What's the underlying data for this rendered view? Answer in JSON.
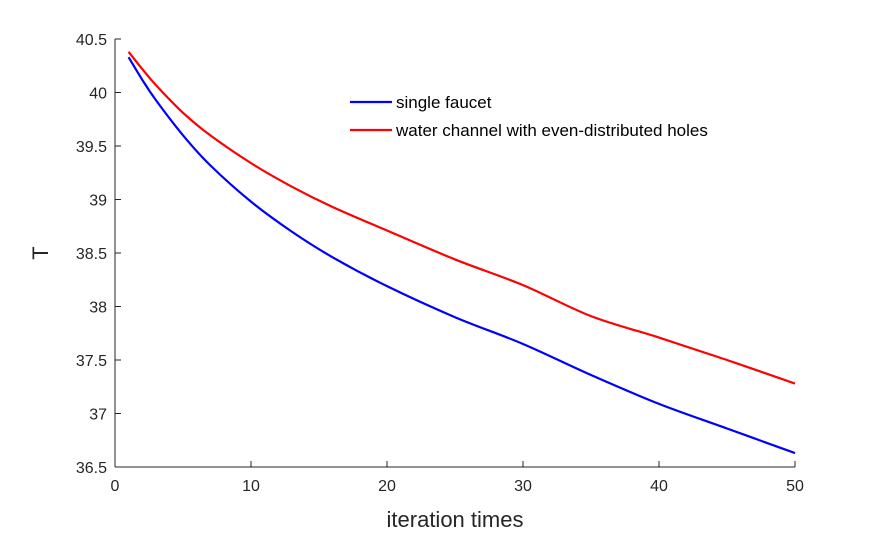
{
  "chart_data": {
    "type": "line",
    "title": "",
    "xlabel": "iteration times",
    "ylabel": "T",
    "xlim": [
      0,
      50
    ],
    "ylim": [
      36.5,
      40.5
    ],
    "xticks": [
      0,
      10,
      20,
      30,
      40,
      50
    ],
    "xtick_labels": [
      "0",
      "10",
      "20",
      "30",
      "40",
      "50"
    ],
    "yticks": [
      36.5,
      37,
      37.5,
      38,
      38.5,
      39,
      39.5,
      40,
      40.5
    ],
    "ytick_labels": [
      "36.5",
      "37",
      "37.5",
      "38",
      "38.5",
      "39",
      "39.5",
      "40",
      "40.5"
    ],
    "grid": false,
    "legend_position": "top-center",
    "series": [
      {
        "name": "single faucet",
        "color": "#0000ff",
        "x": [
          1,
          2,
          3,
          5,
          7,
          10,
          13,
          16,
          20,
          25,
          30,
          35,
          40,
          45,
          50
        ],
        "y": [
          40.33,
          40.12,
          39.93,
          39.6,
          39.32,
          38.98,
          38.7,
          38.46,
          38.19,
          37.9,
          37.65,
          37.36,
          37.09,
          36.86,
          36.63
        ]
      },
      {
        "name": "water channel with even-distributed holes",
        "color": "#ff0000",
        "x": [
          1,
          2,
          3,
          5,
          7,
          10,
          13,
          16,
          20,
          25,
          30,
          35,
          40,
          45,
          50
        ],
        "y": [
          40.38,
          40.22,
          40.07,
          39.81,
          39.6,
          39.34,
          39.12,
          38.93,
          38.71,
          38.44,
          38.2,
          37.91,
          37.71,
          37.5,
          37.28
        ]
      }
    ]
  }
}
